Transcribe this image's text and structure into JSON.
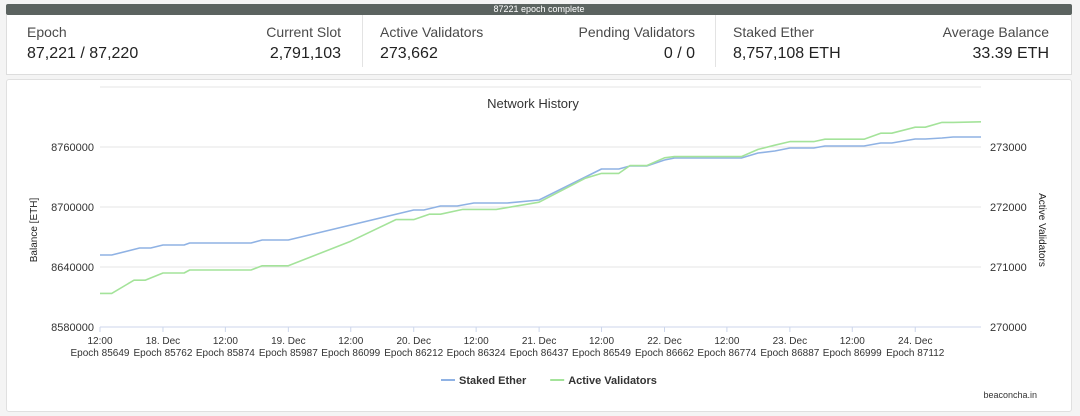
{
  "banner": {
    "text": "87221 epoch complete"
  },
  "stats": {
    "epoch_label": "Epoch",
    "epoch_value": "87,221 / 87,220",
    "slot_label": "Current Slot",
    "slot_value": "2,791,103",
    "active_label": "Active Validators",
    "active_value": "273,662",
    "pending_label": "Pending Validators",
    "pending_value": "0 / 0",
    "staked_label": "Staked Ether",
    "staked_value": "8,757,108 ETH",
    "avg_label": "Average Balance",
    "avg_value": "33.39 ETH"
  },
  "credit": "beaconcha.in",
  "chart_data": {
    "type": "line",
    "title": "Network History",
    "x_ticks": [
      {
        "top": "12:00",
        "bottom": "Epoch 85649"
      },
      {
        "top": "18. Dec",
        "bottom": "Epoch 85762"
      },
      {
        "top": "12:00",
        "bottom": "Epoch 85874"
      },
      {
        "top": "19. Dec",
        "bottom": "Epoch 85987"
      },
      {
        "top": "12:00",
        "bottom": "Epoch 86099"
      },
      {
        "top": "20. Dec",
        "bottom": "Epoch 86212"
      },
      {
        "top": "12:00",
        "bottom": "Epoch 86324"
      },
      {
        "top": "21. Dec",
        "bottom": "Epoch 86437"
      },
      {
        "top": "12:00",
        "bottom": "Epoch 86549"
      },
      {
        "top": "22. Dec",
        "bottom": "Epoch 86662"
      },
      {
        "top": "12:00",
        "bottom": "Epoch 86774"
      },
      {
        "top": "23. Dec",
        "bottom": "Epoch 86887"
      },
      {
        "top": "12:00",
        "bottom": "Epoch 86999"
      },
      {
        "top": "24. Dec",
        "bottom": "Epoch 87112"
      }
    ],
    "xlim": [
      85649,
      87230
    ],
    "y_left": {
      "label": "Balance [ETH]",
      "ticks": [
        8580000,
        8640000,
        8700000,
        8760000
      ],
      "ylim": [
        8580000,
        8820000
      ]
    },
    "y_right": {
      "label": "Active Validators",
      "ticks": [
        270000,
        271000,
        272000,
        273000
      ],
      "ylim": [
        270000,
        274000
      ]
    },
    "series": [
      {
        "name": "Staked Ether",
        "axis": "left",
        "color": "#8fb2e4",
        "x": [
          85649,
          85670,
          85720,
          85740,
          85762,
          85800,
          85810,
          85874,
          85920,
          85940,
          85987,
          86212,
          86230,
          86260,
          86290,
          86320,
          86324,
          86360,
          86380,
          86437,
          86549,
          86580,
          86600,
          86630,
          86662,
          86680,
          86700,
          86730,
          86774,
          86800,
          86830,
          86860,
          86887,
          86930,
          86950,
          86999,
          87020,
          87050,
          87070,
          87112,
          87130,
          87160,
          87180,
          87230
        ],
        "y": [
          8652000,
          8652000,
          8659000,
          8659000,
          8662000,
          8662000,
          8664000,
          8664000,
          8664000,
          8667000,
          8667000,
          8697000,
          8697000,
          8701000,
          8701000,
          8704000,
          8704000,
          8704000,
          8704000,
          8707000,
          8738000,
          8738000,
          8741000,
          8741000,
          8747000,
          8749000,
          8749000,
          8749000,
          8749000,
          8749000,
          8754000,
          8756000,
          8759000,
          8759000,
          8761000,
          8761000,
          8761000,
          8764000,
          8764000,
          8768000,
          8768000,
          8769000,
          8770000,
          8770000
        ]
      },
      {
        "name": "Active Validators",
        "axis": "right",
        "color": "#a4e39a",
        "x": [
          85649,
          85670,
          85710,
          85730,
          85762,
          85800,
          85810,
          85874,
          85920,
          85940,
          85987,
          86099,
          86180,
          86212,
          86240,
          86260,
          86300,
          86320,
          86324,
          86360,
          86380,
          86437,
          86520,
          86549,
          86580,
          86600,
          86630,
          86662,
          86680,
          86700,
          86730,
          86774,
          86800,
          86830,
          86860,
          86887,
          86930,
          86950,
          86999,
          87020,
          87050,
          87070,
          87112,
          87130,
          87160,
          87180,
          87230
        ],
        "y": [
          270560,
          270560,
          270780,
          270780,
          270900,
          270900,
          270950,
          270950,
          270950,
          271020,
          271020,
          271430,
          271790,
          271790,
          271880,
          271880,
          271960,
          271960,
          271960,
          271960,
          271990,
          272080,
          272480,
          272560,
          272560,
          272690,
          272690,
          272820,
          272840,
          272840,
          272840,
          272840,
          272840,
          272960,
          273030,
          273090,
          273090,
          273130,
          273130,
          273130,
          273230,
          273230,
          273330,
          273330,
          273410,
          273410,
          273420
        ]
      }
    ]
  }
}
